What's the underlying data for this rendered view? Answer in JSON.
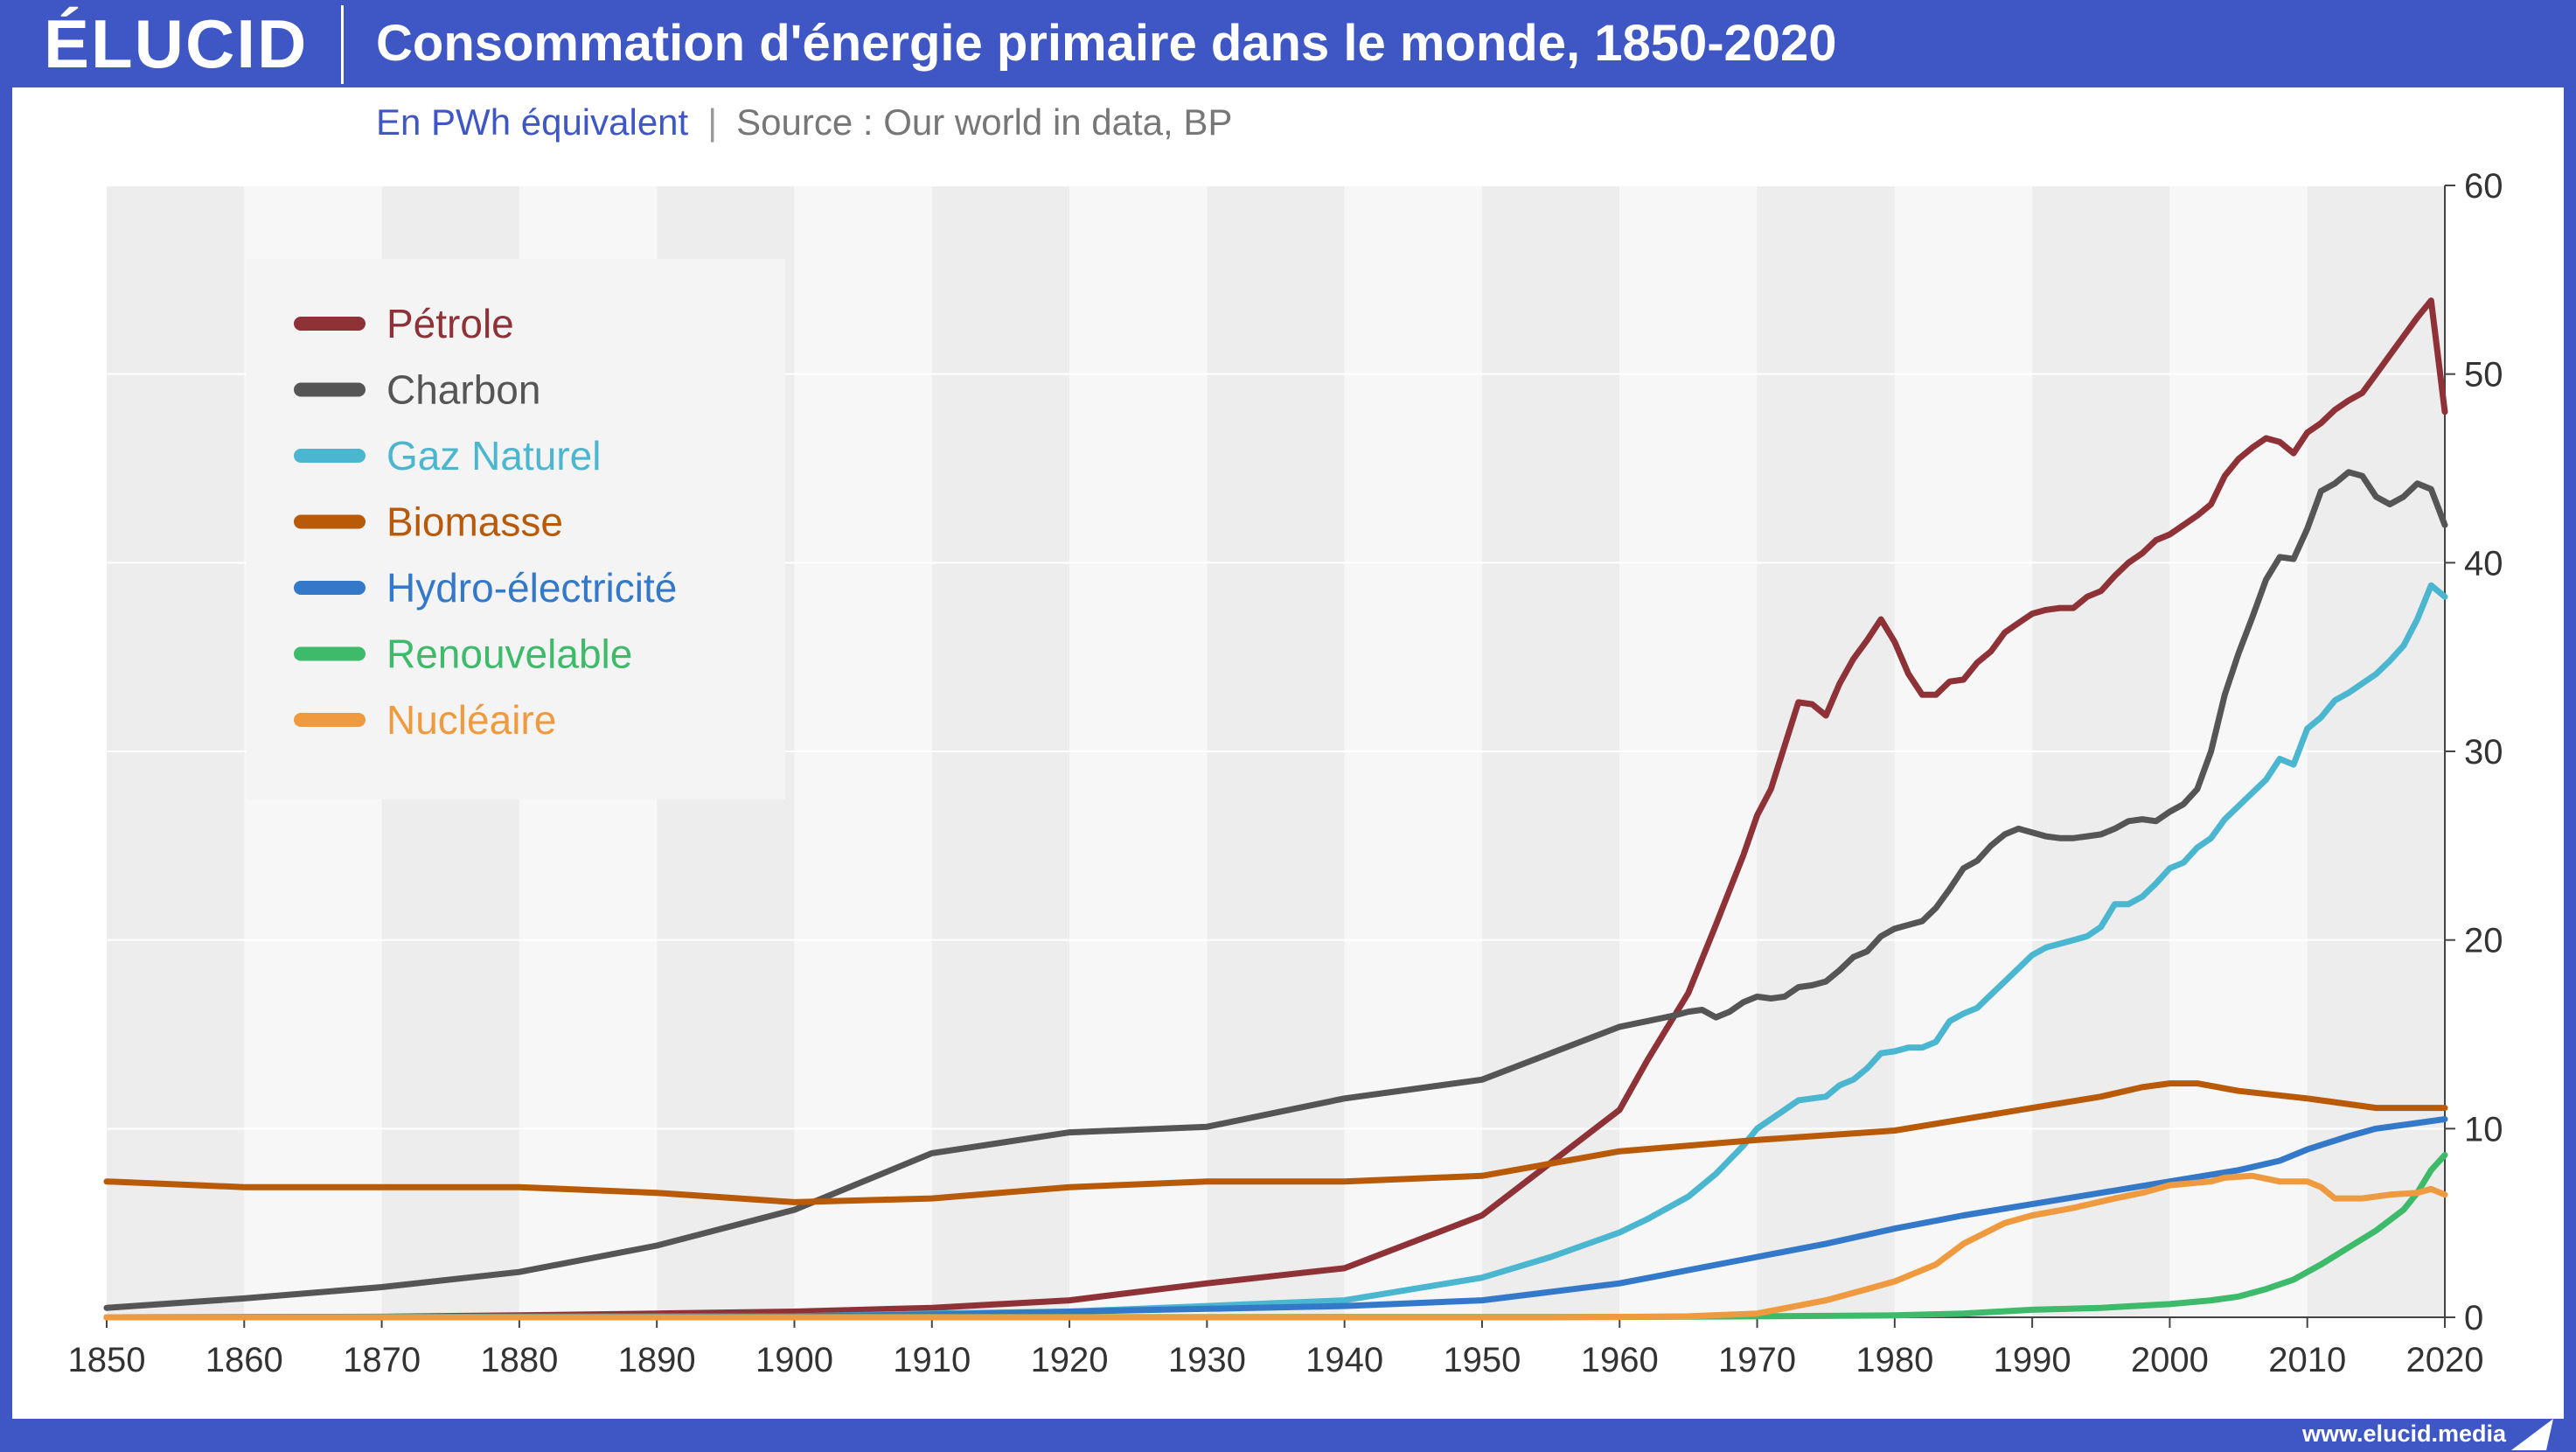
{
  "header": {
    "logo": "ÉLUCID",
    "title": "Consommation d'énergie primaire dans le monde, 1850-2020"
  },
  "subtitle": {
    "unit": "En PWh équivalent",
    "separator": "|",
    "source": "Source : Our world in data, BP"
  },
  "footer": {
    "url": "www.elucid.media"
  },
  "colors": {
    "brand": "#3f57c4",
    "petrole": "#8e3237",
    "charbon": "#555555",
    "gaz": "#4bb6cf",
    "biomasse": "#b85a08",
    "hydro": "#3478c9",
    "renouvelable": "#3dba6a",
    "nucleaire": "#ef9a3e"
  },
  "chart_data": {
    "type": "line",
    "title": "Consommation d'énergie primaire dans le monde, 1850-2020",
    "xlabel": "",
    "ylabel": "",
    "xlim": [
      1850,
      2020
    ],
    "ylim": [
      0,
      60
    ],
    "x_ticks": [
      1850,
      1860,
      1870,
      1880,
      1890,
      1900,
      1910,
      1920,
      1930,
      1940,
      1950,
      1960,
      1970,
      1980,
      1990,
      2000,
      2010,
      2020
    ],
    "y_ticks": [
      0,
      10,
      20,
      30,
      40,
      50,
      60
    ],
    "y_axis_side": "right",
    "grid": "horizontal",
    "alternating_decade_bands": true,
    "legend_position": "top-left",
    "series": [
      {
        "name": "Pétrole",
        "color_key": "petrole",
        "points": [
          [
            1850,
            0
          ],
          [
            1860,
            0.01
          ],
          [
            1870,
            0.03
          ],
          [
            1880,
            0.1
          ],
          [
            1890,
            0.2
          ],
          [
            1900,
            0.3
          ],
          [
            1910,
            0.5
          ],
          [
            1920,
            0.9
          ],
          [
            1930,
            1.8
          ],
          [
            1940,
            2.6
          ],
          [
            1950,
            5.4
          ],
          [
            1955,
            8.2
          ],
          [
            1960,
            11.0
          ],
          [
            1962,
            13.6
          ],
          [
            1965,
            17.2
          ],
          [
            1967,
            20.8
          ],
          [
            1969,
            24.5
          ],
          [
            1970,
            26.6
          ],
          [
            1971,
            28.0
          ],
          [
            1972,
            30.3
          ],
          [
            1973,
            32.6
          ],
          [
            1974,
            32.5
          ],
          [
            1975,
            31.9
          ],
          [
            1976,
            33.6
          ],
          [
            1977,
            34.9
          ],
          [
            1978,
            35.9
          ],
          [
            1979,
            37.0
          ],
          [
            1980,
            35.8
          ],
          [
            1981,
            34.1
          ],
          [
            1982,
            33.0
          ],
          [
            1983,
            33.0
          ],
          [
            1984,
            33.7
          ],
          [
            1985,
            33.8
          ],
          [
            1986,
            34.7
          ],
          [
            1987,
            35.3
          ],
          [
            1988,
            36.3
          ],
          [
            1989,
            36.8
          ],
          [
            1990,
            37.3
          ],
          [
            1991,
            37.5
          ],
          [
            1992,
            37.6
          ],
          [
            1993,
            37.6
          ],
          [
            1994,
            38.2
          ],
          [
            1995,
            38.5
          ],
          [
            1996,
            39.3
          ],
          [
            1997,
            40.0
          ],
          [
            1998,
            40.5
          ],
          [
            1999,
            41.2
          ],
          [
            2000,
            41.5
          ],
          [
            2001,
            42.0
          ],
          [
            2002,
            42.5
          ],
          [
            2003,
            43.1
          ],
          [
            2004,
            44.6
          ],
          [
            2005,
            45.5
          ],
          [
            2006,
            46.1
          ],
          [
            2007,
            46.6
          ],
          [
            2008,
            46.4
          ],
          [
            2009,
            45.8
          ],
          [
            2010,
            46.9
          ],
          [
            2011,
            47.4
          ],
          [
            2012,
            48.1
          ],
          [
            2013,
            48.6
          ],
          [
            2014,
            49.0
          ],
          [
            2015,
            50.0
          ],
          [
            2016,
            51.0
          ],
          [
            2017,
            52.0
          ],
          [
            2018,
            53.0
          ],
          [
            2019,
            53.9
          ],
          [
            2020,
            48.0
          ]
        ]
      },
      {
        "name": "Charbon",
        "color_key": "charbon",
        "points": [
          [
            1850,
            0.5
          ],
          [
            1860,
            1.0
          ],
          [
            1870,
            1.6
          ],
          [
            1880,
            2.4
          ],
          [
            1890,
            3.8
          ],
          [
            1900,
            5.7
          ],
          [
            1910,
            8.7
          ],
          [
            1920,
            9.8
          ],
          [
            1930,
            10.1
          ],
          [
            1940,
            11.6
          ],
          [
            1950,
            12.6
          ],
          [
            1955,
            14.0
          ],
          [
            1960,
            15.4
          ],
          [
            1962,
            15.7
          ],
          [
            1964,
            16.0
          ],
          [
            1965,
            16.2
          ],
          [
            1966,
            16.3
          ],
          [
            1967,
            15.9
          ],
          [
            1968,
            16.2
          ],
          [
            1969,
            16.7
          ],
          [
            1970,
            17.0
          ],
          [
            1971,
            16.9
          ],
          [
            1972,
            17.0
          ],
          [
            1973,
            17.5
          ],
          [
            1974,
            17.6
          ],
          [
            1975,
            17.8
          ],
          [
            1976,
            18.4
          ],
          [
            1977,
            19.1
          ],
          [
            1978,
            19.4
          ],
          [
            1979,
            20.2
          ],
          [
            1980,
            20.6
          ],
          [
            1981,
            20.8
          ],
          [
            1982,
            21.0
          ],
          [
            1983,
            21.7
          ],
          [
            1984,
            22.7
          ],
          [
            1985,
            23.8
          ],
          [
            1986,
            24.2
          ],
          [
            1987,
            25.0
          ],
          [
            1988,
            25.6
          ],
          [
            1989,
            25.9
          ],
          [
            1990,
            25.7
          ],
          [
            1991,
            25.5
          ],
          [
            1992,
            25.4
          ],
          [
            1993,
            25.4
          ],
          [
            1994,
            25.5
          ],
          [
            1995,
            25.6
          ],
          [
            1996,
            25.9
          ],
          [
            1997,
            26.3
          ],
          [
            1998,
            26.4
          ],
          [
            1999,
            26.3
          ],
          [
            2000,
            26.8
          ],
          [
            2001,
            27.2
          ],
          [
            2002,
            28.0
          ],
          [
            2003,
            30.0
          ],
          [
            2004,
            33.0
          ],
          [
            2005,
            35.2
          ],
          [
            2006,
            37.1
          ],
          [
            2007,
            39.1
          ],
          [
            2008,
            40.3
          ],
          [
            2009,
            40.2
          ],
          [
            2010,
            41.8
          ],
          [
            2011,
            43.8
          ],
          [
            2012,
            44.2
          ],
          [
            2013,
            44.8
          ],
          [
            2014,
            44.6
          ],
          [
            2015,
            43.5
          ],
          [
            2016,
            43.1
          ],
          [
            2017,
            43.5
          ],
          [
            2018,
            44.2
          ],
          [
            2019,
            43.9
          ],
          [
            2020,
            42.0
          ]
        ]
      },
      {
        "name": "Gaz Naturel",
        "color_key": "gaz",
        "points": [
          [
            1850,
            0
          ],
          [
            1900,
            0.05
          ],
          [
            1910,
            0.2
          ],
          [
            1920,
            0.3
          ],
          [
            1930,
            0.6
          ],
          [
            1940,
            0.9
          ],
          [
            1950,
            2.1
          ],
          [
            1955,
            3.2
          ],
          [
            1960,
            4.5
          ],
          [
            1962,
            5.2
          ],
          [
            1965,
            6.4
          ],
          [
            1967,
            7.6
          ],
          [
            1969,
            9.1
          ],
          [
            1970,
            10.0
          ],
          [
            1971,
            10.5
          ],
          [
            1972,
            11.0
          ],
          [
            1973,
            11.5
          ],
          [
            1974,
            11.6
          ],
          [
            1975,
            11.7
          ],
          [
            1976,
            12.3
          ],
          [
            1977,
            12.6
          ],
          [
            1978,
            13.2
          ],
          [
            1979,
            14.0
          ],
          [
            1980,
            14.1
          ],
          [
            1981,
            14.3
          ],
          [
            1982,
            14.3
          ],
          [
            1983,
            14.6
          ],
          [
            1984,
            15.7
          ],
          [
            1985,
            16.1
          ],
          [
            1986,
            16.4
          ],
          [
            1987,
            17.1
          ],
          [
            1988,
            17.8
          ],
          [
            1989,
            18.5
          ],
          [
            1990,
            19.2
          ],
          [
            1991,
            19.6
          ],
          [
            1992,
            19.8
          ],
          [
            1993,
            20.0
          ],
          [
            1994,
            20.2
          ],
          [
            1995,
            20.7
          ],
          [
            1996,
            21.9
          ],
          [
            1997,
            21.9
          ],
          [
            1998,
            22.3
          ],
          [
            1999,
            23.0
          ],
          [
            2000,
            23.8
          ],
          [
            2001,
            24.1
          ],
          [
            2002,
            24.9
          ],
          [
            2003,
            25.4
          ],
          [
            2004,
            26.4
          ],
          [
            2005,
            27.1
          ],
          [
            2006,
            27.8
          ],
          [
            2007,
            28.5
          ],
          [
            2008,
            29.6
          ],
          [
            2009,
            29.3
          ],
          [
            2010,
            31.2
          ],
          [
            2011,
            31.8
          ],
          [
            2012,
            32.7
          ],
          [
            2013,
            33.1
          ],
          [
            2014,
            33.6
          ],
          [
            2015,
            34.1
          ],
          [
            2016,
            34.8
          ],
          [
            2017,
            35.6
          ],
          [
            2018,
            37.0
          ],
          [
            2019,
            38.8
          ],
          [
            2020,
            38.2
          ]
        ]
      },
      {
        "name": "Biomasse",
        "color_key": "biomasse",
        "points": [
          [
            1850,
            7.2
          ],
          [
            1860,
            6.9
          ],
          [
            1870,
            6.9
          ],
          [
            1880,
            6.9
          ],
          [
            1890,
            6.6
          ],
          [
            1900,
            6.1
          ],
          [
            1910,
            6.3
          ],
          [
            1920,
            6.9
          ],
          [
            1930,
            7.2
          ],
          [
            1940,
            7.2
          ],
          [
            1950,
            7.5
          ],
          [
            1960,
            8.8
          ],
          [
            1970,
            9.4
          ],
          [
            1980,
            9.9
          ],
          [
            1990,
            11.1
          ],
          [
            1995,
            11.7
          ],
          [
            1998,
            12.2
          ],
          [
            2000,
            12.4
          ],
          [
            2002,
            12.4
          ],
          [
            2005,
            12.0
          ],
          [
            2010,
            11.6
          ],
          [
            2015,
            11.1
          ],
          [
            2020,
            11.1
          ]
        ]
      },
      {
        "name": "Hydro-électricité",
        "color_key": "hydro",
        "points": [
          [
            1850,
            0
          ],
          [
            1890,
            0.02
          ],
          [
            1900,
            0.05
          ],
          [
            1910,
            0.15
          ],
          [
            1920,
            0.3
          ],
          [
            1930,
            0.45
          ],
          [
            1940,
            0.6
          ],
          [
            1950,
            0.9
          ],
          [
            1960,
            1.8
          ],
          [
            1965,
            2.5
          ],
          [
            1970,
            3.2
          ],
          [
            1975,
            3.9
          ],
          [
            1980,
            4.7
          ],
          [
            1985,
            5.4
          ],
          [
            1990,
            6.0
          ],
          [
            1995,
            6.6
          ],
          [
            2000,
            7.2
          ],
          [
            2005,
            7.8
          ],
          [
            2008,
            8.3
          ],
          [
            2010,
            8.9
          ],
          [
            2013,
            9.6
          ],
          [
            2015,
            10.0
          ],
          [
            2018,
            10.3
          ],
          [
            2020,
            10.5
          ]
        ]
      },
      {
        "name": "Renouvelable",
        "color_key": "renouvelable",
        "points": [
          [
            1850,
            0
          ],
          [
            1960,
            0.02
          ],
          [
            1970,
            0.05
          ],
          [
            1980,
            0.1
          ],
          [
            1985,
            0.2
          ],
          [
            1990,
            0.4
          ],
          [
            1995,
            0.5
          ],
          [
            2000,
            0.7
          ],
          [
            2003,
            0.9
          ],
          [
            2005,
            1.1
          ],
          [
            2007,
            1.5
          ],
          [
            2009,
            2.0
          ],
          [
            2011,
            2.8
          ],
          [
            2013,
            3.7
          ],
          [
            2015,
            4.6
          ],
          [
            2017,
            5.7
          ],
          [
            2018,
            6.6
          ],
          [
            2019,
            7.8
          ],
          [
            2020,
            8.6
          ]
        ]
      },
      {
        "name": "Nucléaire",
        "color_key": "nucleaire",
        "points": [
          [
            1850,
            0
          ],
          [
            1955,
            0
          ],
          [
            1965,
            0.05
          ],
          [
            1970,
            0.2
          ],
          [
            1975,
            0.9
          ],
          [
            1978,
            1.5
          ],
          [
            1980,
            1.9
          ],
          [
            1983,
            2.8
          ],
          [
            1985,
            3.9
          ],
          [
            1988,
            5.0
          ],
          [
            1990,
            5.4
          ],
          [
            1993,
            5.8
          ],
          [
            1996,
            6.3
          ],
          [
            1998,
            6.6
          ],
          [
            2000,
            7.0
          ],
          [
            2003,
            7.2
          ],
          [
            2004,
            7.4
          ],
          [
            2006,
            7.5
          ],
          [
            2008,
            7.2
          ],
          [
            2010,
            7.2
          ],
          [
            2011,
            6.9
          ],
          [
            2012,
            6.3
          ],
          [
            2014,
            6.3
          ],
          [
            2016,
            6.5
          ],
          [
            2018,
            6.6
          ],
          [
            2019,
            6.8
          ],
          [
            2020,
            6.5
          ]
        ]
      }
    ]
  }
}
